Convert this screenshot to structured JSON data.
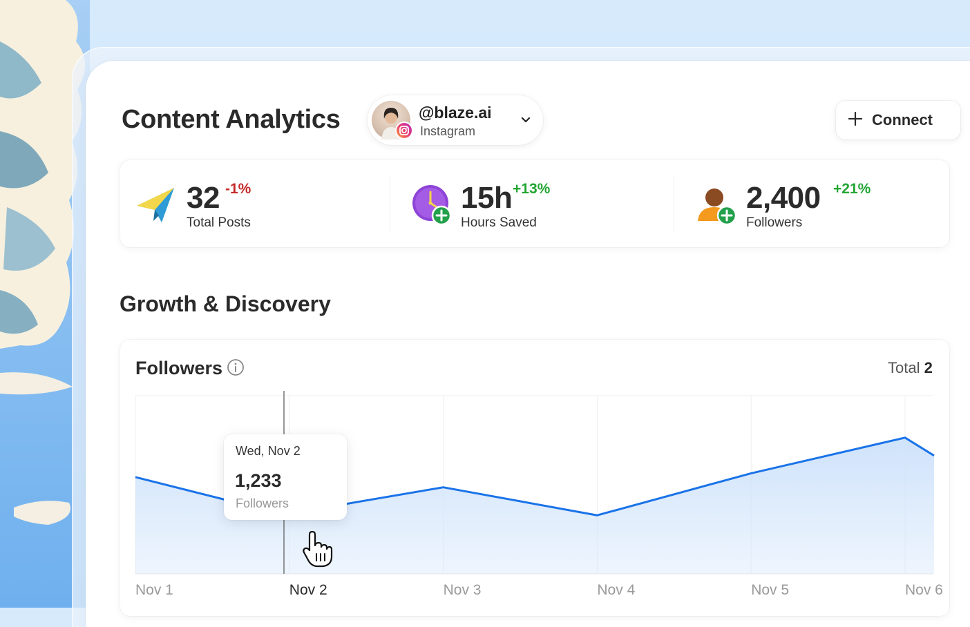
{
  "header": {
    "title": "Content Analytics",
    "account": {
      "handle": "@blaze.ai",
      "platform": "Instagram"
    },
    "connect_label": "Connect"
  },
  "stats": [
    {
      "value": "32",
      "delta": "-1%",
      "label": "Total Posts",
      "icon": "paper-plane-icon",
      "delta_color": "#c62828"
    },
    {
      "value": "15h",
      "delta": "+13%",
      "label": "Hours Saved",
      "icon": "clock-plus-icon",
      "delta_color": "#22a533"
    },
    {
      "value": "2,400",
      "delta": "+21%",
      "label": "Followers",
      "icon": "person-plus-icon",
      "delta_color": "#22a533"
    }
  ],
  "section_title": "Growth & Discovery",
  "followers_card": {
    "title": "Followers",
    "total_label": "Total",
    "total_value": "2"
  },
  "tooltip": {
    "date": "Wed, Nov 2",
    "value": "1,233",
    "label": "Followers"
  },
  "colors": {
    "accent": "#1a73e8",
    "fill": "#cfe3fb",
    "negative": "#c62828",
    "positive": "#22a533"
  },
  "chart_data": {
    "type": "area",
    "x": [
      "Nov 1",
      "Nov 2",
      "Nov 3",
      "Nov 4",
      "Nov 5",
      "Nov 6"
    ],
    "series": [
      {
        "values": [
          1380,
          1233,
          1340,
          1230,
          1395,
          1535
        ]
      }
    ],
    "highlighted_index": 1,
    "ylim": [
      1000,
      1700
    ],
    "grid": true
  }
}
